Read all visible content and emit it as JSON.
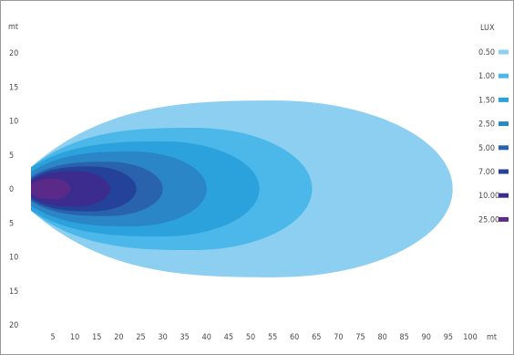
{
  "chart_data": {
    "type": "isolux-contour",
    "y_unit": "mt",
    "x_unit": "mt",
    "y_ticks": [
      "20",
      "15",
      "10",
      "5",
      "0",
      "5",
      "10",
      "15",
      "20"
    ],
    "x_ticks": [
      "5",
      "10",
      "15",
      "20",
      "25",
      "30",
      "35",
      "40",
      "45",
      "50",
      "55",
      "60",
      "65",
      "70",
      "75",
      "80",
      "85",
      "90",
      "95",
      "100"
    ],
    "xlim": [
      0,
      100
    ],
    "ylim": [
      -20,
      20
    ],
    "legend_title": "LUX",
    "legend_position": "right",
    "levels": [
      {
        "label": "0.50",
        "lux": 0.5,
        "color": "#8ccff0",
        "reach_m": 96,
        "half_width_m": 13
      },
      {
        "label": "1.00",
        "lux": 1.0,
        "color": "#4cb8ea",
        "reach_m": 64,
        "half_width_m": 9
      },
      {
        "label": "1.50",
        "lux": 1.5,
        "color": "#2ca2dc",
        "reach_m": 52,
        "half_width_m": 7
      },
      {
        "label": "2.50",
        "lux": 2.5,
        "color": "#2a86c6",
        "reach_m": 40,
        "half_width_m": 5.5
      },
      {
        "label": "5.00",
        "lux": 5.0,
        "color": "#2a63ad",
        "reach_m": 30,
        "half_width_m": 4
      },
      {
        "label": "7.00",
        "lux": 7.0,
        "color": "#25429a",
        "reach_m": 24,
        "half_width_m": 3.3
      },
      {
        "label": "10.00",
        "lux": 10.0,
        "color": "#3b2c8d",
        "reach_m": 18,
        "half_width_m": 2.6
      },
      {
        "label": "25.00",
        "lux": 25.0,
        "color": "#5b2a88",
        "reach_m": 9,
        "half_width_m": 1.5
      }
    ],
    "grid": false
  }
}
